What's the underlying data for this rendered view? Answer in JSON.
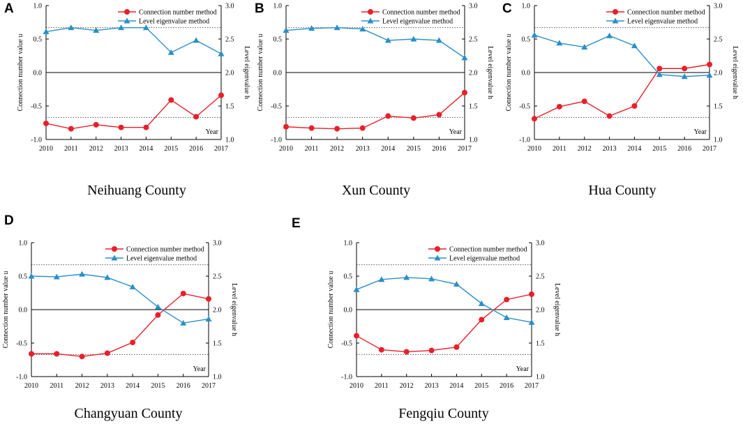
{
  "colors": {
    "connection": "#e8202a",
    "level": "#2a8fc7",
    "axis": "#000000",
    "dotted": "#555555"
  },
  "chart_data": [
    {
      "type": "line",
      "panel": "A",
      "title": "Neihuang County",
      "categories": [
        "2010",
        "2011",
        "2012",
        "2013",
        "2014",
        "2015",
        "2016",
        "2017"
      ],
      "xlabel": "Year",
      "ylabel": "Connection number value u",
      "y2label": "Level eigenvalue h",
      "ylim": [
        -1.0,
        1.0
      ],
      "y2lim": [
        1.0,
        3.0
      ],
      "yticks": [
        "1.0",
        "0.5",
        "0.0",
        "-0.5",
        "-1.0"
      ],
      "y2ticks": [
        "3.0",
        "2.5",
        "2.0",
        "1.5",
        "1.0"
      ],
      "thresholds_u": [
        0.67,
        -0.67
      ],
      "series": [
        {
          "name": "Connection number method",
          "axis": "left",
          "marker": "circle",
          "values": [
            -0.76,
            -0.84,
            -0.78,
            -0.82,
            -0.82,
            -0.41,
            -0.66,
            -0.34
          ]
        },
        {
          "name": "Level eigenvalue method",
          "axis": "right",
          "marker": "triangle",
          "values": [
            2.61,
            2.67,
            2.63,
            2.67,
            2.67,
            2.3,
            2.48,
            2.28
          ]
        }
      ]
    },
    {
      "type": "line",
      "panel": "B",
      "title": "Xun County",
      "categories": [
        "2010",
        "2011",
        "2012",
        "2013",
        "2014",
        "2015",
        "2016",
        "2017"
      ],
      "xlabel": "Year",
      "ylabel": "Connection number value u",
      "y2label": "Level eigenvalue h",
      "ylim": [
        -1.0,
        1.0
      ],
      "y2lim": [
        1.0,
        3.0
      ],
      "yticks": [
        "1.0",
        "0.5",
        "0.0",
        "-0.5",
        "-1.0"
      ],
      "y2ticks": [
        "3.0",
        "2.5",
        "2.0",
        "1.5",
        "1.0"
      ],
      "thresholds_u": [
        0.67,
        -0.67
      ],
      "series": [
        {
          "name": "Connection number method",
          "axis": "left",
          "marker": "circle",
          "values": [
            -0.81,
            -0.83,
            -0.84,
            -0.83,
            -0.65,
            -0.68,
            -0.63,
            -0.3
          ]
        },
        {
          "name": "Level eigenvalue method",
          "axis": "right",
          "marker": "triangle",
          "values": [
            2.63,
            2.66,
            2.67,
            2.65,
            2.48,
            2.5,
            2.48,
            2.22
          ]
        }
      ]
    },
    {
      "type": "line",
      "panel": "C",
      "title": "Hua County",
      "categories": [
        "2010",
        "2011",
        "2012",
        "2013",
        "2014",
        "2015",
        "2016",
        "2017"
      ],
      "xlabel": "Year",
      "ylabel": "Connection number value u",
      "y2label": "Level eigenvalue h",
      "ylim": [
        -1.0,
        1.0
      ],
      "y2lim": [
        1.0,
        3.0
      ],
      "yticks": [
        "1.0",
        "0.5",
        "0.0",
        "-0.5",
        "-1.0"
      ],
      "y2ticks": [
        "3.0",
        "2.5",
        "2.0",
        "1.5",
        "1.0"
      ],
      "thresholds_u": [
        0.67,
        -0.67
      ],
      "series": [
        {
          "name": "Connection number method",
          "axis": "left",
          "marker": "circle",
          "values": [
            -0.69,
            -0.51,
            -0.43,
            -0.65,
            -0.5,
            0.06,
            0.06,
            0.12
          ]
        },
        {
          "name": "Level eigenvalue method",
          "axis": "right",
          "marker": "triangle",
          "values": [
            2.56,
            2.44,
            2.38,
            2.55,
            2.4,
            1.97,
            1.94,
            1.96
          ]
        }
      ]
    },
    {
      "type": "line",
      "panel": "D",
      "title": "Changyuan County",
      "categories": [
        "2010",
        "2011",
        "2012",
        "2013",
        "2014",
        "2015",
        "2016",
        "2017"
      ],
      "xlabel": "Year",
      "ylabel": "Connection number value u",
      "y2label": "Level eigenvalue h",
      "ylim": [
        -1.0,
        1.0
      ],
      "y2lim": [
        1.0,
        3.0
      ],
      "yticks": [
        "1.0",
        "0.5",
        "0.0",
        "-0.5",
        "-1.0"
      ],
      "y2ticks": [
        "3.0",
        "2.5",
        "2.0",
        "1.5",
        "1.0"
      ],
      "thresholds_u": [
        0.67,
        -0.67
      ],
      "series": [
        {
          "name": "Connection number method",
          "axis": "left",
          "marker": "circle",
          "values": [
            -0.66,
            -0.66,
            -0.7,
            -0.65,
            -0.49,
            -0.08,
            0.24,
            0.16
          ]
        },
        {
          "name": "Level eigenvalue method",
          "axis": "right",
          "marker": "triangle",
          "values": [
            2.5,
            2.49,
            2.53,
            2.48,
            2.34,
            2.04,
            1.8,
            1.86
          ]
        }
      ]
    },
    {
      "type": "line",
      "panel": "E",
      "title": "Fengqiu County",
      "categories": [
        "2010",
        "2011",
        "2012",
        "2013",
        "2014",
        "2015",
        "2016",
        "2017"
      ],
      "xlabel": "Year",
      "ylabel": "Connection number value u",
      "y2label": "Level eigenvalue h",
      "ylim": [
        -1.0,
        1.0
      ],
      "y2lim": [
        1.0,
        3.0
      ],
      "yticks": [
        "1.0",
        "0.5",
        "0.0",
        "-0.5",
        "-1.0"
      ],
      "y2ticks": [
        "3.0",
        "2.5",
        "2.0",
        "1.5",
        "1.0"
      ],
      "thresholds_u": [
        0.67,
        -0.67
      ],
      "series": [
        {
          "name": "Connection number method",
          "axis": "left",
          "marker": "circle",
          "values": [
            -0.39,
            -0.6,
            -0.63,
            -0.61,
            -0.56,
            -0.15,
            0.15,
            0.23
          ]
        },
        {
          "name": "Level eigenvalue method",
          "axis": "right",
          "marker": "triangle",
          "values": [
            2.3,
            2.45,
            2.48,
            2.46,
            2.38,
            2.09,
            1.88,
            1.81
          ]
        }
      ]
    }
  ]
}
